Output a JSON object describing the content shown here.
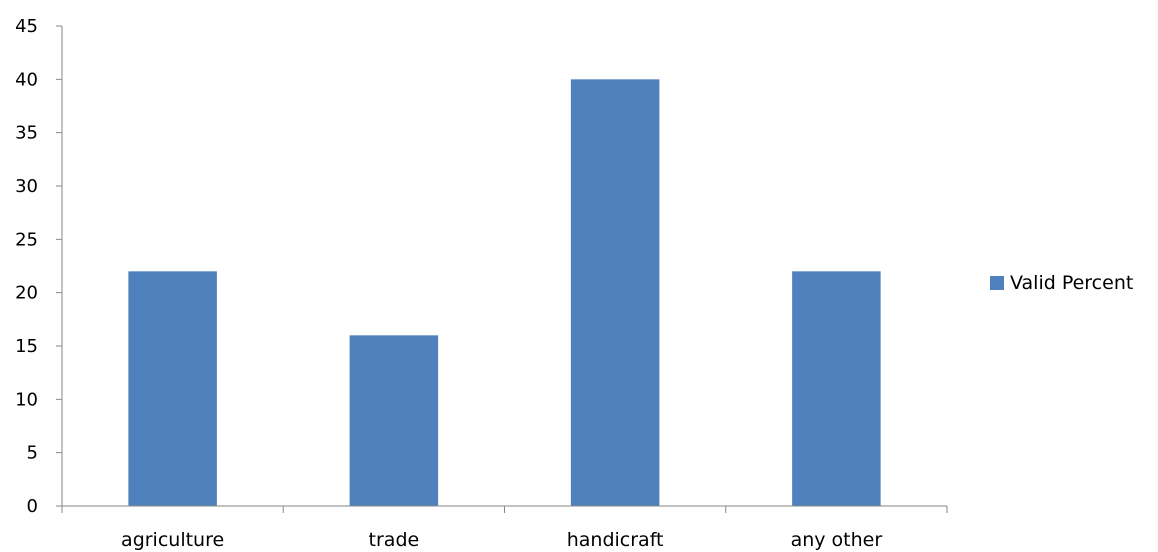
{
  "colors": {
    "bar": "#4F81BD",
    "axis": "#868686",
    "text": "#000000",
    "background": "#ffffff"
  },
  "legend": {
    "position": "right",
    "label": "Valid Percent"
  },
  "chart_data": {
    "type": "bar",
    "title": "",
    "xlabel": "",
    "ylabel": "",
    "categories": [
      "agriculture",
      "trade",
      "handicraft",
      "any other"
    ],
    "series": [
      {
        "name": "Valid Percent",
        "values": [
          22,
          16,
          40,
          22
        ]
      }
    ],
    "ylim": [
      0,
      45
    ],
    "yticks": [
      0,
      5,
      10,
      15,
      20,
      25,
      30,
      35,
      40,
      45
    ],
    "grid": false
  }
}
